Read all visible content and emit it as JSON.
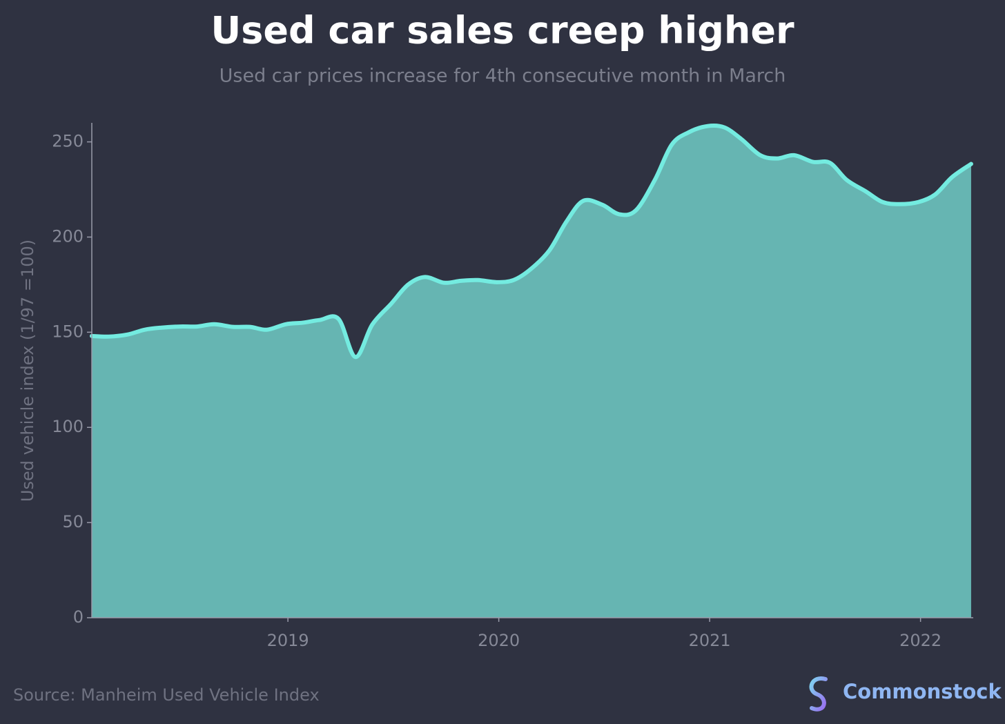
{
  "chart_data": {
    "type": "area",
    "title": "Used car sales creep higher",
    "subtitle": "Used car prices increase for 4th consecutive month in March",
    "ylabel": "Used vehicle index (1/97 =100)",
    "source": "Source: Manheim Used Vehicle Index",
    "brand": "Commonstock",
    "xlim": [
      2018.07,
      2022.25
    ],
    "xticks": [
      2019,
      2020,
      2021,
      2022
    ],
    "ylim": [
      0,
      260
    ],
    "yticks": [
      0,
      50,
      100,
      150,
      200,
      250
    ],
    "line_color": "#74ebe0",
    "fill_color": "#66b5b2",
    "grid": false,
    "x": [
      2018.07,
      2018.15,
      2018.24,
      2018.32,
      2018.4,
      2018.49,
      2018.57,
      2018.65,
      2018.74,
      2018.82,
      2018.9,
      2018.99,
      2019.07,
      2019.15,
      2019.24,
      2019.32,
      2019.4,
      2019.49,
      2019.57,
      2019.65,
      2019.74,
      2019.82,
      2019.9,
      2019.99,
      2020.07,
      2020.15,
      2020.24,
      2020.32,
      2020.4,
      2020.49,
      2020.57,
      2020.65,
      2020.74,
      2020.82,
      2020.9,
      2020.99,
      2021.07,
      2021.15,
      2021.24,
      2021.32,
      2021.4,
      2021.49,
      2021.57,
      2021.65,
      2021.74,
      2021.82,
      2021.9,
      2021.99,
      2022.07,
      2022.15,
      2022.24
    ],
    "values": [
      148,
      147.7,
      148.8,
      151.3,
      152.4,
      153,
      153,
      154.2,
      152.8,
      152.8,
      151.3,
      154.2,
      155,
      156.4,
      157,
      137,
      154,
      165,
      175,
      179,
      176,
      177,
      177.4,
      176.3,
      177.4,
      183,
      193,
      208,
      219,
      217,
      212,
      214,
      230,
      248.5,
      255,
      258.3,
      257.6,
      251.5,
      243,
      241.3,
      243,
      239.5,
      239,
      230,
      224,
      218.4,
      217.3,
      218.4,
      222.4,
      231.5,
      238.4
    ]
  }
}
